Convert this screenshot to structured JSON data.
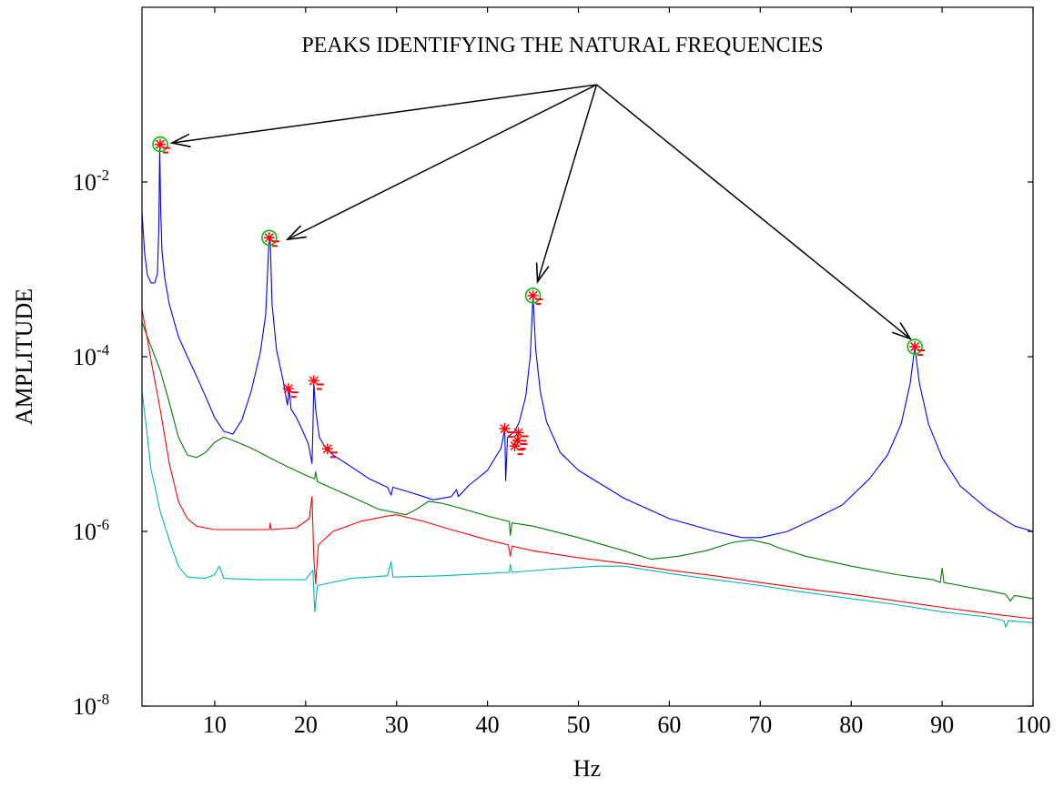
{
  "chart_data": {
    "type": "line",
    "title": "",
    "xlabel": "Hz",
    "ylabel": "AMPLITUDE",
    "x_scale": "linear",
    "y_scale": "log",
    "xlim": [
      2,
      100
    ],
    "ylim": [
      1e-08,
      1
    ],
    "grid": false,
    "legend": "none",
    "x_ticks": [
      10,
      20,
      30,
      40,
      50,
      60,
      70,
      80,
      90,
      100
    ],
    "x_tick_labels": [
      "10",
      "20",
      "30",
      "40",
      "50",
      "60",
      "70",
      "80",
      "90",
      "100"
    ],
    "y_ticks": [
      {
        "value": 1e-08,
        "base": "10",
        "exp": "-8"
      },
      {
        "value": 1e-06,
        "base": "10",
        "exp": "-6"
      },
      {
        "value": 0.0001,
        "base": "10",
        "exp": "-4"
      },
      {
        "value": 0.01,
        "base": "10",
        "exp": "-2"
      }
    ],
    "annotation": {
      "text": "PEAKS IDENTIFYING THE NATURAL FREQUENCIES",
      "source": [
        52,
        0.13
      ],
      "targets": [
        [
          5.3,
          0.028
        ],
        [
          18.0,
          0.0022
        ],
        [
          45.5,
          0.00072
        ],
        [
          86.5,
          0.00016
        ]
      ]
    },
    "series": [
      {
        "color": "#0000ff",
        "points": [
          [
            2.0,
            0.0045
          ],
          [
            2.3,
            0.0015
          ],
          [
            2.6,
            0.00085
          ],
          [
            3.0,
            0.0007
          ],
          [
            3.4,
            0.0007
          ],
          [
            3.7,
            0.0009
          ],
          [
            3.85,
            0.003
          ],
          [
            3.95,
            0.026
          ],
          [
            4.05,
            0.005
          ],
          [
            4.2,
            0.0016
          ],
          [
            4.5,
            0.0008
          ],
          [
            5.0,
            0.0004
          ],
          [
            6.0,
            0.00017
          ],
          [
            7.0,
            0.0001
          ],
          [
            8.0,
            6e-05
          ],
          [
            9.0,
            3.5e-05
          ],
          [
            10.0,
            2e-05
          ],
          [
            11.0,
            1.4e-05
          ],
          [
            12.0,
            1.3e-05
          ],
          [
            13.0,
            1.9e-05
          ],
          [
            14.0,
            4e-05
          ],
          [
            15.0,
            0.00011
          ],
          [
            15.6,
            0.0003
          ],
          [
            15.95,
            0.002
          ],
          [
            16.1,
            0.0022
          ],
          [
            16.3,
            0.0004
          ],
          [
            16.8,
            0.00012
          ],
          [
            17.5,
            5.5e-05
          ],
          [
            18.0,
            2.8e-05
          ],
          [
            18.2,
            4.2e-05
          ],
          [
            18.4,
            2.5e-05
          ],
          [
            19.0,
            2e-05
          ],
          [
            19.7,
            1.4e-05
          ],
          [
            20.3,
            1e-05
          ],
          [
            20.7,
            6e-06
          ],
          [
            20.8,
            1.5e-05
          ],
          [
            20.9,
            5e-05
          ],
          [
            21.1,
            2.5e-05
          ],
          [
            21.5,
            1.2e-05
          ],
          [
            22.2,
            9e-06
          ],
          [
            23,
            7.5e-06
          ],
          [
            25,
            5.5e-06
          ],
          [
            27,
            4e-06
          ],
          [
            29,
            3.2e-06
          ],
          [
            29.4,
            2.6e-06
          ],
          [
            29.6,
            3.2e-06
          ],
          [
            31,
            2.9e-06
          ],
          [
            33,
            2.5e-06
          ],
          [
            34,
            2.3e-06
          ],
          [
            36,
            2.5e-06
          ],
          [
            36.6,
            3e-06
          ],
          [
            36.8,
            2.5e-06
          ],
          [
            38,
            3.4e-06
          ],
          [
            40,
            5e-06
          ],
          [
            41.5,
            9e-06
          ],
          [
            41.9,
            1.5e-05
          ],
          [
            42.0,
            3.8e-06
          ],
          [
            42.2,
            1.2e-05
          ],
          [
            43.0,
            1.4e-05
          ],
          [
            43.5,
            1.8e-05
          ],
          [
            44.2,
            3.5e-05
          ],
          [
            44.7,
            0.0001
          ],
          [
            45.0,
            0.0005
          ],
          [
            45.3,
            0.00012
          ],
          [
            45.8,
            4e-05
          ],
          [
            46.5,
            1.8e-05
          ],
          [
            48,
            8e-06
          ],
          [
            50,
            5e-06
          ],
          [
            55,
            2.4e-06
          ],
          [
            60,
            1.4e-06
          ],
          [
            65,
            1e-06
          ],
          [
            68,
            8.5e-07
          ],
          [
            70,
            8.5e-07
          ],
          [
            73,
            1e-06
          ],
          [
            76,
            1.4e-06
          ],
          [
            79,
            2e-06
          ],
          [
            82,
            4e-06
          ],
          [
            84,
            7.5e-06
          ],
          [
            85.5,
            1.7e-05
          ],
          [
            86.5,
            5e-05
          ],
          [
            87.0,
            0.00013
          ],
          [
            87.5,
            5e-05
          ],
          [
            88.5,
            1.7e-05
          ],
          [
            90,
            7e-06
          ],
          [
            92,
            3.3e-06
          ],
          [
            95,
            1.8e-06
          ],
          [
            98,
            1.15e-06
          ],
          [
            100,
            1e-06
          ]
        ]
      },
      {
        "color": "#007a00",
        "points": [
          [
            2.0,
            0.00025
          ],
          [
            2.5,
            0.00018
          ],
          [
            3.0,
            0.00013
          ],
          [
            4.0,
            7e-05
          ],
          [
            5.0,
            3e-05
          ],
          [
            6.0,
            1.2e-05
          ],
          [
            7.0,
            7.5e-06
          ],
          [
            8.0,
            7e-06
          ],
          [
            9.0,
            8e-06
          ],
          [
            10.0,
            1.05e-05
          ],
          [
            11.0,
            1.2e-05
          ],
          [
            12.0,
            1.1e-05
          ],
          [
            14.0,
            9e-06
          ],
          [
            16.0,
            7e-06
          ],
          [
            18.0,
            5.5e-06
          ],
          [
            20.0,
            4.4e-06
          ],
          [
            21.0,
            4e-06
          ],
          [
            21.1,
            4.8e-06
          ],
          [
            21.3,
            3.7e-06
          ],
          [
            25.0,
            2.5e-06
          ],
          [
            28.0,
            1.8e-06
          ],
          [
            31.0,
            1.55e-06
          ],
          [
            32.0,
            1.75e-06
          ],
          [
            33.5,
            2.2e-06
          ],
          [
            35.0,
            2.1e-06
          ],
          [
            37.0,
            1.85e-06
          ],
          [
            40.0,
            1.5e-06
          ],
          [
            42.4,
            1.3e-06
          ],
          [
            42.5,
            9e-07
          ],
          [
            42.7,
            1.25e-06
          ],
          [
            45.0,
            1.15e-06
          ],
          [
            50.0,
            8.5e-07
          ],
          [
            55.0,
            6e-07
          ],
          [
            58.0,
            4.8e-07
          ],
          [
            61.0,
            5.2e-07
          ],
          [
            64.0,
            6e-07
          ],
          [
            67.0,
            7.5e-07
          ],
          [
            69.0,
            8e-07
          ],
          [
            71.0,
            7.2e-07
          ],
          [
            72.0,
            6.5e-07
          ],
          [
            75.0,
            5.2e-07
          ],
          [
            80.0,
            4e-07
          ],
          [
            85.0,
            3.2e-07
          ],
          [
            89.0,
            2.8e-07
          ],
          [
            89.8,
            2.6e-07
          ],
          [
            90.0,
            3.8e-07
          ],
          [
            90.2,
            2.6e-07
          ],
          [
            92.0,
            2.4e-07
          ],
          [
            95.0,
            2.1e-07
          ],
          [
            97.0,
            1.9e-07
          ],
          [
            97.5,
            1.6e-07
          ],
          [
            98.0,
            1.85e-07
          ],
          [
            100.0,
            1.7e-07
          ]
        ]
      },
      {
        "color": "#ff0000",
        "points": [
          [
            2.0,
            0.00035
          ],
          [
            2.5,
            0.00018
          ],
          [
            3.0,
            9e-05
          ],
          [
            4.0,
            2.5e-05
          ],
          [
            5.0,
            6e-06
          ],
          [
            6.0,
            2.2e-06
          ],
          [
            7.0,
            1.4e-06
          ],
          [
            8.0,
            1.15e-06
          ],
          [
            10.0,
            1.05e-06
          ],
          [
            12.0,
            1.05e-06
          ],
          [
            16.0,
            1.05e-06
          ],
          [
            16.1,
            1.25e-06
          ],
          [
            16.2,
            1.05e-06
          ],
          [
            19.0,
            1.1e-06
          ],
          [
            20.4,
            1.4e-06
          ],
          [
            20.7,
            2.5e-06
          ],
          [
            20.9,
            5e-07
          ],
          [
            21.1,
            2.5e-07
          ],
          [
            21.4,
            7e-07
          ],
          [
            23.0,
            1e-06
          ],
          [
            26.0,
            1.3e-06
          ],
          [
            29.0,
            1.5e-06
          ],
          [
            30.0,
            1.55e-06
          ],
          [
            33.0,
            1.3e-06
          ],
          [
            36.0,
            1.05e-06
          ],
          [
            40.0,
            8e-07
          ],
          [
            42.3,
            7e-07
          ],
          [
            42.5,
            5.2e-07
          ],
          [
            42.7,
            6.8e-07
          ],
          [
            45.0,
            6e-07
          ],
          [
            50.0,
            5e-07
          ],
          [
            55.0,
            4.3e-07
          ],
          [
            60.0,
            3.6e-07
          ],
          [
            65.0,
            3.1e-07
          ],
          [
            70.0,
            2.6e-07
          ],
          [
            75.0,
            2.2e-07
          ],
          [
            80.0,
            1.9e-07
          ],
          [
            85.0,
            1.6e-07
          ],
          [
            90.0,
            1.35e-07
          ],
          [
            95.0,
            1.15e-07
          ],
          [
            100.0,
            1e-07
          ]
        ]
      },
      {
        "color": "#00b5b5",
        "points": [
          [
            2.0,
            4e-05
          ],
          [
            2.5,
            1.5e-05
          ],
          [
            3.0,
            5e-06
          ],
          [
            3.5,
            3e-06
          ],
          [
            4.0,
            1.7e-06
          ],
          [
            5.0,
            8e-07
          ],
          [
            6.0,
            4e-07
          ],
          [
            7.0,
            3e-07
          ],
          [
            9.0,
            2.9e-07
          ],
          [
            10.0,
            3.2e-07
          ],
          [
            10.5,
            4e-07
          ],
          [
            11.0,
            2.9e-07
          ],
          [
            15.0,
            2.8e-07
          ],
          [
            20.0,
            2.8e-07
          ],
          [
            20.8,
            3.6e-07
          ],
          [
            21.0,
            1.2e-07
          ],
          [
            21.3,
            2.4e-07
          ],
          [
            25.0,
            2.9e-07
          ],
          [
            29.0,
            3.1e-07
          ],
          [
            29.4,
            4.5e-07
          ],
          [
            29.6,
            3e-07
          ],
          [
            35.0,
            3.1e-07
          ],
          [
            40.0,
            3.3e-07
          ],
          [
            42.4,
            3.4e-07
          ],
          [
            42.5,
            4.2e-07
          ],
          [
            42.7,
            3.4e-07
          ],
          [
            47.0,
            3.7e-07
          ],
          [
            52.0,
            4e-07
          ],
          [
            55.0,
            4e-07
          ],
          [
            60.0,
            3.3e-07
          ],
          [
            65.0,
            2.8e-07
          ],
          [
            70.0,
            2.4e-07
          ],
          [
            75.0,
            2e-07
          ],
          [
            80.0,
            1.7e-07
          ],
          [
            85.0,
            1.45e-07
          ],
          [
            90.0,
            1.2e-07
          ],
          [
            95.0,
            1.05e-07
          ],
          [
            96.8,
            9.5e-08
          ],
          [
            97.0,
            8e-08
          ],
          [
            97.3,
            9.5e-08
          ],
          [
            100.0,
            9e-08
          ]
        ]
      }
    ],
    "peak_markers": [
      {
        "x": 4.0,
        "y": 0.027,
        "circled": true
      },
      {
        "x": 16.0,
        "y": 0.0023,
        "circled": true
      },
      {
        "x": 45.0,
        "y": 0.0005,
        "circled": true
      },
      {
        "x": 87.0,
        "y": 0.00013,
        "circled": true
      },
      {
        "x": 18.1,
        "y": 4.3e-05,
        "circled": false
      },
      {
        "x": 20.9,
        "y": 5.3e-05,
        "circled": false
      },
      {
        "x": 22.4,
        "y": 8.8e-06,
        "circled": false
      },
      {
        "x": 41.9,
        "y": 1.5e-05,
        "circled": false
      },
      {
        "x": 43.4,
        "y": 1.35e-05,
        "circled": false
      },
      {
        "x": 43.3,
        "y": 1.1e-05,
        "circled": false
      },
      {
        "x": 43.0,
        "y": 9.5e-06,
        "circled": false
      }
    ],
    "colors": {
      "axis": "#000000",
      "marker_star": "#ff0000",
      "marker_circle": "#00c000"
    }
  }
}
